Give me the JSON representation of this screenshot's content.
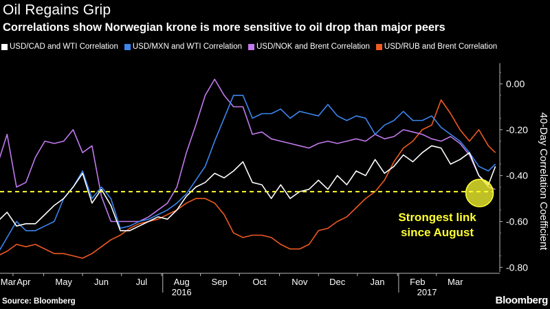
{
  "title": "Oil Regains Grip",
  "subtitle": "Correlations show Norwegian krone is more sensitive to oil drop than major peers",
  "source": "Source: Bloomberg",
  "brand": "Bloomberg",
  "chart_data": {
    "type": "line",
    "ylabel": "40-Day Correlation Coefficient",
    "ylim": [
      -0.82,
      0.09
    ],
    "yticks": [
      0.0,
      -0.2,
      -0.4,
      -0.6,
      -0.8
    ],
    "ytick_labels": [
      "0.00",
      "-0.20",
      "-0.40",
      "-0.60",
      "-0.80"
    ],
    "y_axis_side": "right",
    "grid": false,
    "legend_position": "top",
    "xlim": [
      2016.155,
      2017.21
    ],
    "x_month_labels": [
      "Mar",
      "Apr",
      "May",
      "Jun",
      "Jul",
      "Aug",
      "Sep",
      "Oct",
      "Nov",
      "Dec",
      "Jan",
      "Feb",
      "Mar"
    ],
    "x_month_centers": [
      2016.16,
      2016.205,
      2016.29,
      2016.37,
      2016.455,
      2016.54,
      2016.62,
      2016.705,
      2016.79,
      2016.87,
      2016.955,
      2017.04,
      2017.12
    ],
    "x_year_labels": [
      "2016",
      "2017"
    ],
    "x_year_positions": [
      2016.54,
      2017.06
    ],
    "x_year_dividers": [
      2016.5,
      2017.0
    ],
    "reference_line": {
      "y": -0.47,
      "color": "#ffff33",
      "style": "dashed"
    },
    "annotation": {
      "text_lines": [
        "Strongest link",
        "since August"
      ],
      "x": 2017.17,
      "y": -0.47,
      "color": "#ffff33"
    },
    "series": [
      {
        "name": "USD/CAD and WTI Correlation",
        "color": "#ffffff",
        "x": [
          2016.15,
          2016.17,
          2016.19,
          2016.21,
          2016.23,
          2016.25,
          2016.27,
          2016.29,
          2016.31,
          2016.33,
          2016.35,
          2016.37,
          2016.39,
          2016.41,
          2016.43,
          2016.45,
          2016.47,
          2016.49,
          2016.51,
          2016.53,
          2016.55,
          2016.57,
          2016.59,
          2016.61,
          2016.63,
          2016.65,
          2016.67,
          2016.69,
          2016.71,
          2016.73,
          2016.75,
          2016.77,
          2016.79,
          2016.81,
          2016.83,
          2016.85,
          2016.87,
          2016.89,
          2016.91,
          2016.93,
          2016.95,
          2016.97,
          2016.99,
          2017.01,
          2017.03,
          2017.05,
          2017.07,
          2017.09,
          2017.11,
          2017.13,
          2017.15,
          2017.17,
          2017.19,
          2017.205
        ],
        "y": [
          -0.6,
          -0.56,
          -0.62,
          -0.61,
          -0.61,
          -0.57,
          -0.53,
          -0.5,
          -0.45,
          -0.39,
          -0.52,
          -0.46,
          -0.53,
          -0.64,
          -0.64,
          -0.62,
          -0.6,
          -0.58,
          -0.59,
          -0.55,
          -0.49,
          -0.45,
          -0.43,
          -0.39,
          -0.41,
          -0.38,
          -0.34,
          -0.43,
          -0.44,
          -0.5,
          -0.44,
          -0.5,
          -0.47,
          -0.46,
          -0.42,
          -0.46,
          -0.4,
          -0.44,
          -0.38,
          -0.4,
          -0.33,
          -0.39,
          -0.36,
          -0.31,
          -0.34,
          -0.3,
          -0.27,
          -0.28,
          -0.35,
          -0.33,
          -0.3,
          -0.4,
          -0.44,
          -0.36
        ]
      },
      {
        "name": "USD/MXN and WTI Correlation",
        "color": "#3d86f0",
        "x": [
          2016.15,
          2016.17,
          2016.19,
          2016.21,
          2016.23,
          2016.25,
          2016.27,
          2016.29,
          2016.31,
          2016.33,
          2016.35,
          2016.37,
          2016.39,
          2016.41,
          2016.43,
          2016.45,
          2016.47,
          2016.49,
          2016.51,
          2016.53,
          2016.55,
          2016.57,
          2016.59,
          2016.61,
          2016.63,
          2016.65,
          2016.67,
          2016.69,
          2016.71,
          2016.73,
          2016.75,
          2016.77,
          2016.79,
          2016.81,
          2016.83,
          2016.85,
          2016.87,
          2016.89,
          2016.91,
          2016.93,
          2016.95,
          2016.97,
          2016.99,
          2017.01,
          2017.03,
          2017.05,
          2017.07,
          2017.09,
          2017.11,
          2017.13,
          2017.15,
          2017.17,
          2017.19,
          2017.205
        ],
        "y": [
          -0.74,
          -0.67,
          -0.6,
          -0.64,
          -0.64,
          -0.62,
          -0.6,
          -0.5,
          -0.45,
          -0.38,
          -0.5,
          -0.45,
          -0.5,
          -0.63,
          -0.62,
          -0.6,
          -0.59,
          -0.57,
          -0.55,
          -0.52,
          -0.48,
          -0.42,
          -0.36,
          -0.25,
          -0.15,
          -0.05,
          -0.05,
          -0.15,
          -0.13,
          -0.13,
          -0.11,
          -0.15,
          -0.12,
          -0.13,
          -0.14,
          -0.09,
          -0.14,
          -0.16,
          -0.14,
          -0.15,
          -0.22,
          -0.18,
          -0.16,
          -0.12,
          -0.16,
          -0.16,
          -0.14,
          -0.19,
          -0.22,
          -0.25,
          -0.3,
          -0.36,
          -0.38,
          -0.35
        ]
      },
      {
        "name": "USD/NOK and Brent Correlation",
        "color": "#c27aee",
        "x": [
          2016.15,
          2016.17,
          2016.19,
          2016.21,
          2016.23,
          2016.25,
          2016.27,
          2016.29,
          2016.31,
          2016.33,
          2016.35,
          2016.37,
          2016.39,
          2016.41,
          2016.43,
          2016.45,
          2016.47,
          2016.49,
          2016.51,
          2016.53,
          2016.55,
          2016.57,
          2016.59,
          2016.61,
          2016.63,
          2016.65,
          2016.67,
          2016.69,
          2016.71,
          2016.73,
          2016.75,
          2016.77,
          2016.79,
          2016.81,
          2016.83,
          2016.85,
          2016.87,
          2016.89,
          2016.91,
          2016.93,
          2016.95,
          2016.97,
          2016.99,
          2017.01,
          2017.03,
          2017.05,
          2017.07,
          2017.09,
          2017.11,
          2017.13,
          2017.15,
          2017.17,
          2017.19,
          2017.205
        ],
        "y": [
          -0.35,
          -0.22,
          -0.45,
          -0.43,
          -0.32,
          -0.25,
          -0.26,
          -0.25,
          -0.2,
          -0.3,
          -0.27,
          -0.49,
          -0.6,
          -0.6,
          -0.6,
          -0.6,
          -0.58,
          -0.55,
          -0.52,
          -0.45,
          -0.3,
          -0.18,
          -0.05,
          0.02,
          -0.05,
          -0.1,
          -0.1,
          -0.22,
          -0.21,
          -0.24,
          -0.25,
          -0.26,
          -0.27,
          -0.28,
          -0.26,
          -0.25,
          -0.26,
          -0.25,
          -0.24,
          -0.25,
          -0.22,
          -0.24,
          -0.23,
          -0.2,
          -0.21,
          -0.22,
          -0.24,
          -0.25,
          -0.23,
          -0.26,
          -0.31,
          -0.4,
          -0.45,
          -0.46
        ]
      },
      {
        "name": "USD/RUB and Brent Correlation",
        "color": "#f05a22",
        "x": [
          2016.15,
          2016.17,
          2016.19,
          2016.21,
          2016.23,
          2016.25,
          2016.27,
          2016.29,
          2016.31,
          2016.33,
          2016.35,
          2016.37,
          2016.39,
          2016.41,
          2016.43,
          2016.45,
          2016.47,
          2016.49,
          2016.51,
          2016.53,
          2016.55,
          2016.57,
          2016.59,
          2016.61,
          2016.63,
          2016.65,
          2016.67,
          2016.69,
          2016.71,
          2016.73,
          2016.75,
          2016.77,
          2016.79,
          2016.81,
          2016.83,
          2016.85,
          2016.87,
          2016.89,
          2016.91,
          2016.93,
          2016.95,
          2016.97,
          2016.99,
          2017.01,
          2017.03,
          2017.05,
          2017.07,
          2017.09,
          2017.11,
          2017.13,
          2017.15,
          2017.17,
          2017.19,
          2017.205
        ],
        "y": [
          -0.75,
          -0.73,
          -0.7,
          -0.71,
          -0.7,
          -0.72,
          -0.74,
          -0.74,
          -0.75,
          -0.76,
          -0.74,
          -0.71,
          -0.68,
          -0.66,
          -0.63,
          -0.61,
          -0.6,
          -0.59,
          -0.57,
          -0.55,
          -0.52,
          -0.5,
          -0.5,
          -0.52,
          -0.57,
          -0.65,
          -0.67,
          -0.66,
          -0.66,
          -0.67,
          -0.7,
          -0.72,
          -0.72,
          -0.7,
          -0.64,
          -0.63,
          -0.6,
          -0.58,
          -0.54,
          -0.5,
          -0.47,
          -0.42,
          -0.34,
          -0.28,
          -0.25,
          -0.2,
          -0.18,
          -0.07,
          -0.13,
          -0.2,
          -0.25,
          -0.2,
          -0.27,
          -0.3
        ]
      }
    ]
  }
}
